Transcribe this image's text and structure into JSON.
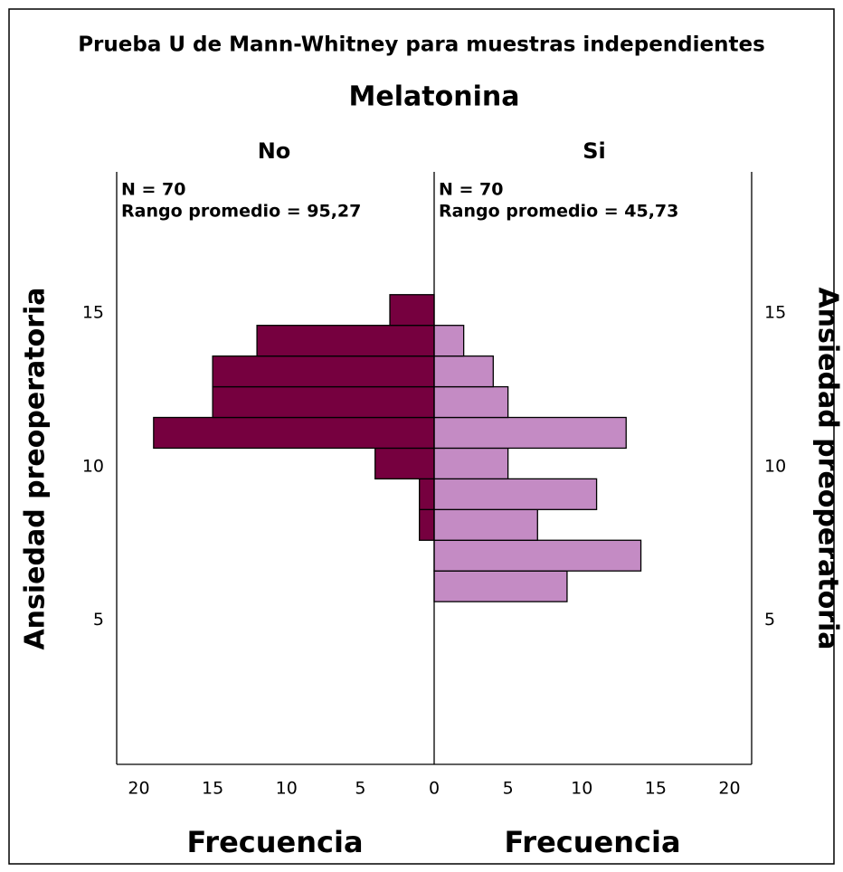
{
  "chart_data": {
    "type": "histogram",
    "title": "Prueba U de Mann-Whitney para muestras independientes",
    "subtitle": "Melatonina",
    "xlabel": "Frecuencia",
    "ylabel": "Ansiedad preoperatoria",
    "bins": [
      5.6,
      6.6,
      7.6,
      8.6,
      9.6,
      10.6,
      11.6,
      12.6,
      13.6,
      14.6,
      15.6
    ],
    "series": [
      {
        "name": "No",
        "color": "#76003f",
        "notes": [
          "N = 70",
          "Rango promedio = 95,27"
        ],
        "values": [
          0,
          0,
          1,
          1,
          4,
          19,
          15,
          15,
          12,
          3
        ]
      },
      {
        "name": "Si",
        "color": "#c48bc4",
        "notes": [
          "N = 70",
          "Rango promedio = 45,73"
        ],
        "values": [
          9,
          14,
          7,
          11,
          5,
          13,
          5,
          4,
          2,
          0
        ]
      }
    ],
    "xlim": [
      0,
      21.5
    ],
    "xticks": [
      0,
      5,
      10,
      15,
      20
    ],
    "ylim": [
      0.3,
      19.6
    ],
    "yticks": [
      5,
      10,
      15
    ],
    "grid": false
  }
}
